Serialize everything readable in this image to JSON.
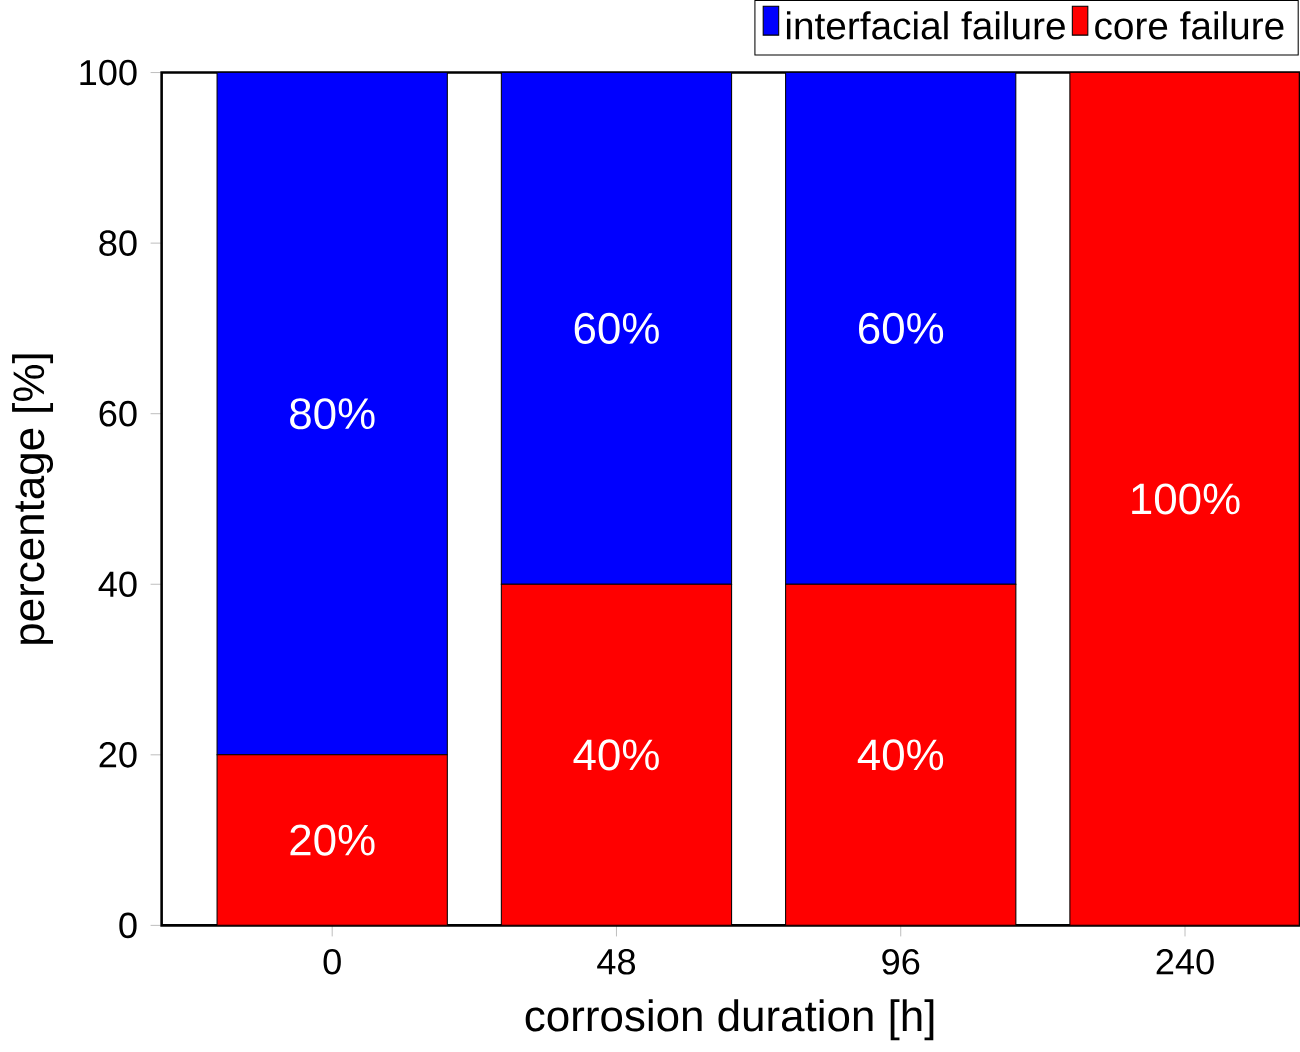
{
  "chart_data": {
    "type": "bar",
    "stacked": true,
    "xlabel": "corrosion duration [h]",
    "ylabel": "percentage [%]",
    "categories": [
      "0",
      "48",
      "96",
      "240"
    ],
    "series": [
      {
        "name": "core failure",
        "color": "#ff0000",
        "values": [
          20,
          40,
          40,
          100
        ],
        "value_labels": [
          "20%",
          "40%",
          "40%",
          "100%"
        ]
      },
      {
        "name": "interfacial failure",
        "color": "#0000ff",
        "values": [
          80,
          60,
          60,
          0
        ],
        "value_labels": [
          "80%",
          "60%",
          "60%",
          null
        ]
      }
    ],
    "ylim": [
      0,
      100
    ],
    "yticks": [
      0,
      20,
      40,
      60,
      80,
      100
    ],
    "legend": "top right"
  }
}
